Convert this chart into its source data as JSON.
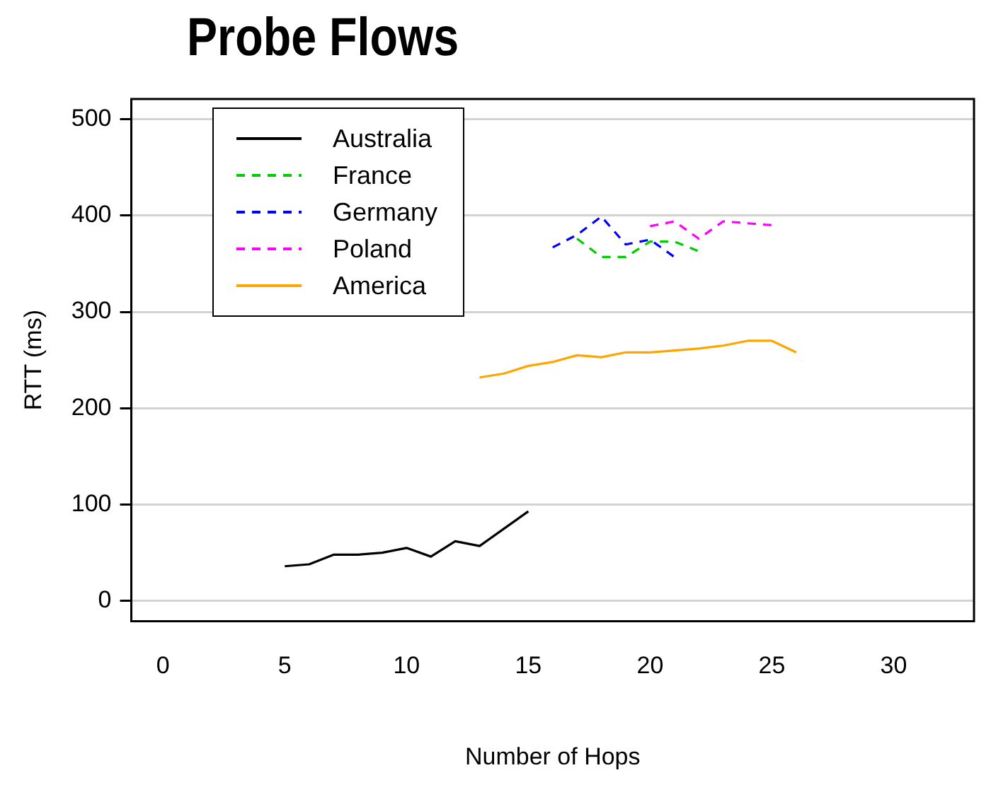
{
  "chart_data": {
    "type": "line",
    "title": "Probe Flows",
    "xlabel": "Number of Hops",
    "ylabel": "RTT (ms)",
    "xlim": [
      -1.3,
      33.3
    ],
    "xticks": [
      0,
      5,
      10,
      15,
      20,
      25,
      30
    ],
    "ylim": [
      -21,
      521
    ],
    "yticks": [
      0,
      100,
      200,
      300,
      400,
      500
    ],
    "grid": "y",
    "legend": "top left",
    "marker": "none",
    "series": [
      {
        "name": "Australia",
        "color": "#000000",
        "line_style": "solid",
        "x": [
          5,
          6,
          7,
          8,
          9,
          10,
          11,
          12,
          13,
          14,
          15
        ],
        "values": [
          36,
          38,
          48,
          48,
          50,
          55,
          46,
          62,
          57,
          75,
          93
        ]
      },
      {
        "name": "France",
        "color": "#00cc00",
        "line_style": "dashed",
        "x": [
          17,
          18,
          19,
          20,
          21,
          22
        ],
        "values": [
          376,
          357,
          357,
          373,
          373,
          363
        ]
      },
      {
        "name": "Germany",
        "color": "#0000ff",
        "line_style": "dashed",
        "x": [
          16,
          17,
          18,
          19,
          20,
          21
        ],
        "values": [
          367,
          380,
          399,
          370,
          375,
          357
        ]
      },
      {
        "name": "Poland",
        "color": "#ff00ff",
        "line_style": "dashed",
        "x": [
          20,
          21,
          22,
          23,
          24,
          25
        ],
        "values": [
          389,
          394,
          376,
          394,
          392,
          390
        ]
      },
      {
        "name": "America",
        "color": "#ffa500",
        "line_style": "solid",
        "x": [
          13,
          14,
          15,
          16,
          17,
          18,
          19,
          20,
          21,
          22,
          23,
          24,
          25,
          26
        ],
        "values": [
          232,
          236,
          244,
          248,
          255,
          253,
          258,
          258,
          260,
          262,
          265,
          270,
          270,
          258
        ]
      }
    ]
  }
}
